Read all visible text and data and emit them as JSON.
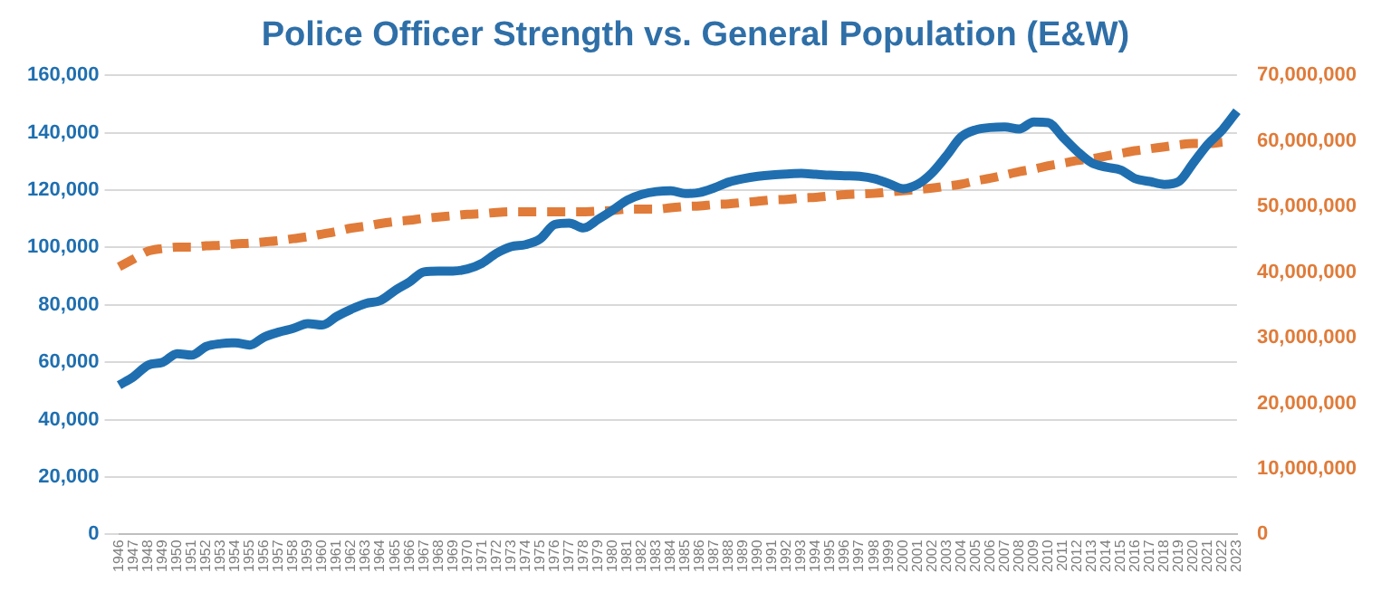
{
  "chart_data": {
    "type": "line",
    "title": "Police Officer Strength vs. General Population (E&W)",
    "categories": [
      "1946",
      "1947",
      "1948",
      "1949",
      "1950",
      "1951",
      "1952",
      "1953",
      "1954",
      "1955",
      "1956",
      "1957",
      "1958",
      "1959",
      "1960",
      "1961",
      "1962",
      "1963",
      "1964",
      "1965",
      "1966",
      "1967",
      "1968",
      "1969",
      "1970",
      "1971",
      "1972",
      "1973",
      "1974",
      "1975",
      "1976",
      "1977",
      "1978",
      "1979",
      "1980",
      "1981",
      "1982",
      "1983",
      "1984",
      "1985",
      "1986",
      "1987",
      "1988",
      "1989",
      "1990",
      "1991",
      "1992",
      "1993",
      "1994",
      "1995",
      "1996",
      "1997",
      "1998",
      "1999",
      "2000",
      "2001",
      "2002",
      "2003",
      "2004",
      "2005",
      "2006",
      "2007",
      "2008",
      "2009",
      "2010",
      "2011",
      "2012",
      "2013",
      "2014",
      "2015",
      "2016",
      "2017",
      "2018",
      "2019",
      "2020",
      "2021",
      "2022",
      "2023"
    ],
    "series": [
      {
        "color": "#1f6fb0",
        "line_style": "solid",
        "values": [
          52000,
          55000,
          59000,
          60000,
          63000,
          62500,
          65500,
          66500,
          66800,
          66000,
          68800,
          70500,
          71800,
          73500,
          73000,
          76000,
          78500,
          80500,
          81500,
          85000,
          88000,
          91500,
          91800,
          91800,
          92500,
          94500,
          98000,
          100300,
          101000,
          103000,
          108000,
          108500,
          106800,
          109800,
          113000,
          116500,
          118500,
          119500,
          119800,
          118800,
          119200,
          120800,
          122800,
          124000,
          124800,
          125300,
          125600,
          125800,
          125500,
          125200,
          125000,
          124800,
          124000,
          122300,
          120500,
          122000,
          126000,
          132000,
          138500,
          141000,
          141800,
          142000,
          141300,
          143700,
          143500,
          138500,
          133500,
          129500,
          128000,
          127000,
          124000,
          123000,
          122000,
          123000,
          129500,
          136000,
          141000,
          147500
        ]
      },
      {
        "color": "#e07b39",
        "line_style": "dashed",
        "axis": "y2",
        "values": [
          40800000,
          42000000,
          43200000,
          43600000,
          43800000,
          43800000,
          44000000,
          44100000,
          44300000,
          44400000,
          44600000,
          44800000,
          45100000,
          45400000,
          45800000,
          46200000,
          46700000,
          47000000,
          47400000,
          47700000,
          47900000,
          48200000,
          48400000,
          48600000,
          48800000,
          48900000,
          49100000,
          49200000,
          49200000,
          49200000,
          49200000,
          49200000,
          49200000,
          49300000,
          49400000,
          49600000,
          49600000,
          49600000,
          49800000,
          50000000,
          50100000,
          50300000,
          50400000,
          50600000,
          50800000,
          51000000,
          51100000,
          51300000,
          51400000,
          51600000,
          51800000,
          51900000,
          52000000,
          52200000,
          52400000,
          52600000,
          52800000,
          53100000,
          53400000,
          53900000,
          54300000,
          54800000,
          55300000,
          55700000,
          56200000,
          56600000,
          57000000,
          57300000,
          57700000,
          58100000,
          58500000,
          58800000,
          59100000,
          59400000,
          59600000,
          59600000,
          59800000,
          null
        ]
      }
    ],
    "ylim": [
      0,
      160000
    ],
    "yticks": [
      {
        "value": 0,
        "label": "0"
      },
      {
        "value": 20000,
        "label": "20,000"
      },
      {
        "value": 40000,
        "label": "40,000"
      },
      {
        "value": 60000,
        "label": "60,000"
      },
      {
        "value": 80000,
        "label": "80,000"
      },
      {
        "value": 100000,
        "label": "100,000"
      },
      {
        "value": 120000,
        "label": "120,000"
      },
      {
        "value": 140000,
        "label": "140,000"
      },
      {
        "value": 160000,
        "label": "160,000"
      }
    ],
    "y2lim": [
      0,
      70000000
    ],
    "y2ticks": [
      {
        "value": 0,
        "label": "0"
      },
      {
        "value": 10000000,
        "label": "10,000,000"
      },
      {
        "value": 20000000,
        "label": "20,000,000"
      },
      {
        "value": 30000000,
        "label": "30,000,000"
      },
      {
        "value": 40000000,
        "label": "40,000,000"
      },
      {
        "value": 50000000,
        "label": "50,000,000"
      },
      {
        "value": 60000000,
        "label": "60,000,000"
      },
      {
        "value": 70000000,
        "label": "70,000,000"
      }
    ],
    "grid": "y",
    "legend": false,
    "marker": "none"
  }
}
